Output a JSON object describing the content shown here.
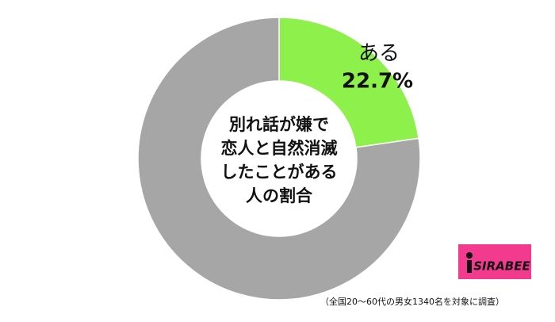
{
  "chart_data": {
    "type": "donut",
    "title": [
      "別れ話が嫌で",
      "恋人と自然消滅",
      "したことがある",
      "人の割合"
    ],
    "categories": [
      "ある",
      null
    ],
    "values": [
      22.7,
      77.3
    ],
    "value_labels": [
      "22.7%",
      null
    ],
    "colors": [
      "#8ef04b",
      "#a6a6a6"
    ],
    "note": "（全国20～60代の男女1340名を対象に調査）",
    "logo": "SIRABEE"
  }
}
